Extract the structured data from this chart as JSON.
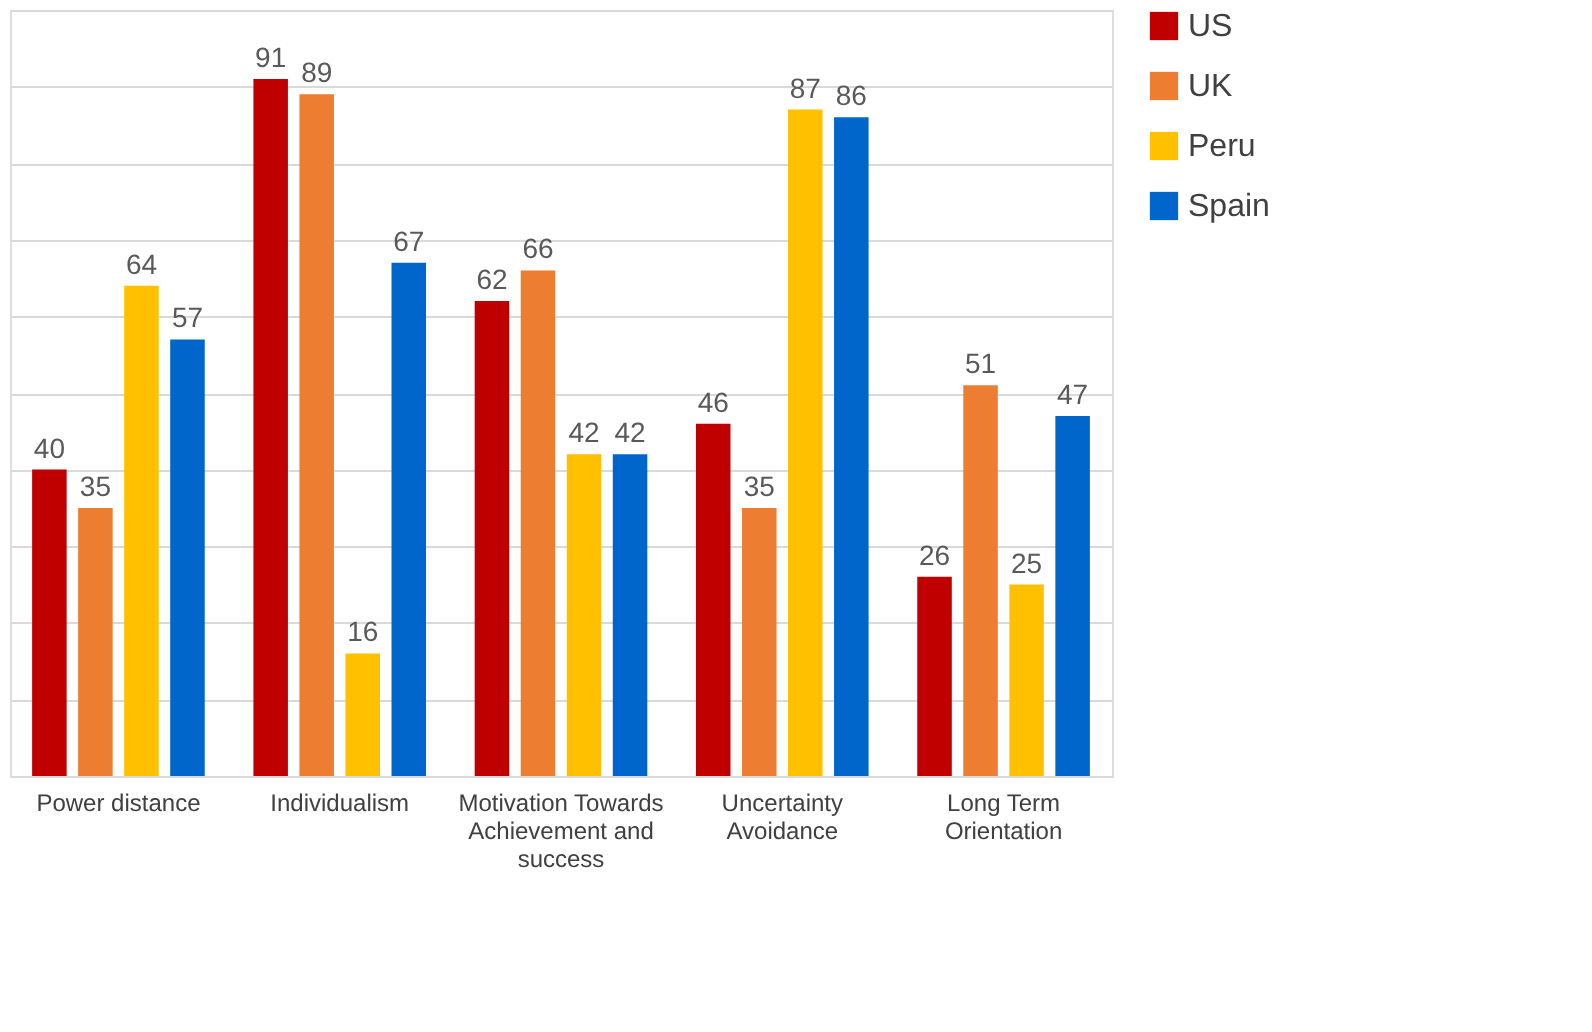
{
  "chart_data": {
    "type": "bar",
    "categories": [
      "Power distance",
      "Individualism",
      "Motivation Towards Achievement and success",
      "Uncertainty Avoidance",
      "Long Term Orientation"
    ],
    "series": [
      {
        "name": "US",
        "color": "#c00000",
        "values": [
          40,
          91,
          62,
          46,
          26
        ]
      },
      {
        "name": "UK",
        "color": "#ed7d31",
        "values": [
          35,
          89,
          66,
          35,
          51
        ]
      },
      {
        "name": "Peru",
        "color": "#ffc000",
        "values": [
          64,
          16,
          42,
          87,
          25
        ]
      },
      {
        "name": "Spain",
        "color": "#0066cc",
        "values": [
          57,
          67,
          42,
          86,
          47
        ]
      }
    ],
    "ylim": [
      0,
      100
    ],
    "yticks": [
      {
        "value": 0,
        "label": null
      },
      {
        "value": 10,
        "label": null
      },
      {
        "value": 20,
        "label": null
      },
      {
        "value": 30,
        "label": null
      },
      {
        "value": 40,
        "label": null
      },
      {
        "value": 50,
        "label": null
      },
      {
        "value": 60,
        "label": null
      },
      {
        "value": 70,
        "label": null
      },
      {
        "value": 80,
        "label": null
      },
      {
        "value": 90,
        "label": null
      },
      {
        "value": 100,
        "label": null
      }
    ],
    "tick_labels": "x",
    "grid": "y",
    "legend": "right",
    "data_labels": true
  }
}
